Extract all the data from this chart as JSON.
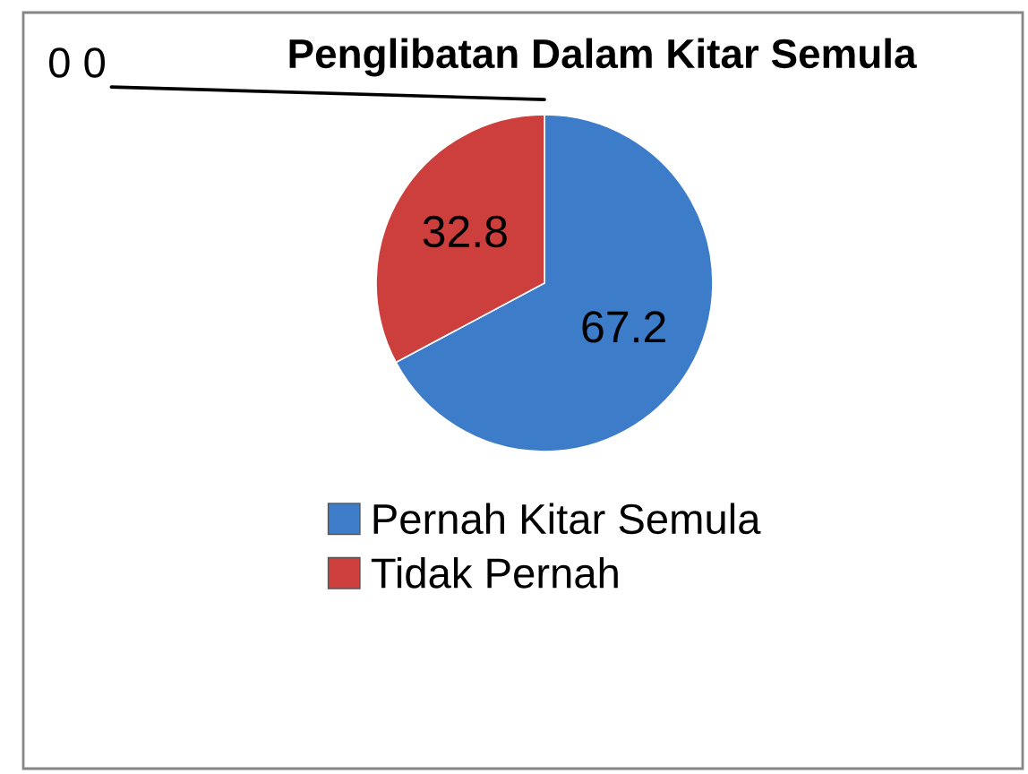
{
  "chart_data": {
    "type": "pie",
    "title": "Penglibatan Dalam Kitar Semula",
    "categories": [
      "Pernah Kitar Semula",
      "Tidak Pernah"
    ],
    "values": [
      67.2,
      32.8
    ],
    "colors": [
      "#3d7cc9",
      "#cc3f3c"
    ],
    "data_labels": true,
    "legend": "bottom",
    "annotations": [
      "0 0"
    ]
  }
}
